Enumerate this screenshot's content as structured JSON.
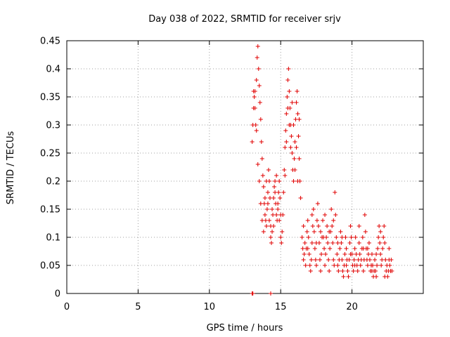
{
  "chart_data": {
    "type": "scatter",
    "title": "Day 038 of 2022, SRMTID for receiver srjv",
    "xlabel": "GPS time / hours",
    "ylabel": "SRMTID / TECUs",
    "xlim": [
      0,
      25
    ],
    "ylim": [
      0,
      0.45
    ],
    "x_ticks": [
      0,
      5,
      10,
      15,
      20
    ],
    "y_ticks": [
      0,
      0.05,
      0.1,
      0.15,
      0.2,
      0.25,
      0.3,
      0.35,
      0.4,
      0.45
    ],
    "x_tick_labels": [
      "0",
      "5",
      "10",
      "15",
      "20"
    ],
    "y_tick_labels": [
      "0",
      "0.05",
      "0.1",
      "0.15",
      "0.2",
      "0.25",
      "0.3",
      "0.35",
      "0.4",
      "0.45"
    ],
    "grid": true,
    "marker": "plus",
    "color": "#e00000",
    "series": [
      {
        "values": [
          [
            13.0,
            0.0
          ],
          [
            13.05,
            0.0
          ],
          [
            14.3,
            0.0
          ],
          [
            13.1,
            0.36
          ],
          [
            13.15,
            0.35
          ],
          [
            13.2,
            0.33
          ],
          [
            13.25,
            0.3
          ],
          [
            13.3,
            0.38
          ],
          [
            13.35,
            0.42
          ],
          [
            13.4,
            0.44
          ],
          [
            13.45,
            0.4
          ],
          [
            13.5,
            0.37
          ],
          [
            13.55,
            0.34
          ],
          [
            13.6,
            0.31
          ],
          [
            13.65,
            0.27
          ],
          [
            13.7,
            0.24
          ],
          [
            13.75,
            0.21
          ],
          [
            13.8,
            0.19
          ],
          [
            13.85,
            0.16
          ],
          [
            13.9,
            0.14
          ],
          [
            13.95,
            0.13
          ],
          [
            14.0,
            0.12
          ],
          [
            14.05,
            0.15
          ],
          [
            14.1,
            0.18
          ],
          [
            14.15,
            0.22
          ],
          [
            14.2,
            0.2
          ],
          [
            14.25,
            0.17
          ],
          [
            14.3,
            0.12
          ],
          [
            14.35,
            0.09
          ],
          [
            14.4,
            0.11
          ],
          [
            14.45,
            0.14
          ],
          [
            14.5,
            0.17
          ],
          [
            14.55,
            0.19
          ],
          [
            14.6,
            0.2
          ],
          [
            14.65,
            0.16
          ],
          [
            14.7,
            0.14
          ],
          [
            14.75,
            0.13
          ],
          [
            14.8,
            0.15
          ],
          [
            14.85,
            0.18
          ],
          [
            14.9,
            0.2
          ],
          [
            14.95,
            0.17
          ],
          [
            15.0,
            0.1
          ],
          [
            15.05,
            0.09
          ],
          [
            15.1,
            0.11
          ],
          [
            15.15,
            0.14
          ],
          [
            15.2,
            0.18
          ],
          [
            15.25,
            0.22
          ],
          [
            15.3,
            0.26
          ],
          [
            13.0,
            0.27
          ],
          [
            13.05,
            0.3
          ],
          [
            13.1,
            0.33
          ],
          [
            13.2,
            0.36
          ],
          [
            13.3,
            0.29
          ],
          [
            13.4,
            0.23
          ],
          [
            13.5,
            0.2
          ],
          [
            13.6,
            0.16
          ],
          [
            13.7,
            0.13
          ],
          [
            13.8,
            0.11
          ],
          [
            13.9,
            0.17
          ],
          [
            14.0,
            0.2
          ],
          [
            14.1,
            0.16
          ],
          [
            14.2,
            0.13
          ],
          [
            14.3,
            0.1
          ],
          [
            14.4,
            0.15
          ],
          [
            14.5,
            0.12
          ],
          [
            14.6,
            0.18
          ],
          [
            14.7,
            0.21
          ],
          [
            14.8,
            0.16
          ],
          [
            14.9,
            0.13
          ],
          [
            15.0,
            0.14
          ],
          [
            15.35,
            0.29
          ],
          [
            15.4,
            0.32
          ],
          [
            15.45,
            0.35
          ],
          [
            15.5,
            0.38
          ],
          [
            15.55,
            0.4
          ],
          [
            15.6,
            0.36
          ],
          [
            15.65,
            0.33
          ],
          [
            15.7,
            0.3
          ],
          [
            15.75,
            0.28
          ],
          [
            15.8,
            0.25
          ],
          [
            15.85,
            0.22
          ],
          [
            15.9,
            0.2
          ],
          [
            15.95,
            0.24
          ],
          [
            16.0,
            0.27
          ],
          [
            16.05,
            0.31
          ],
          [
            16.1,
            0.34
          ],
          [
            16.15,
            0.36
          ],
          [
            16.2,
            0.32
          ],
          [
            16.25,
            0.28
          ],
          [
            16.3,
            0.24
          ],
          [
            16.35,
            0.2
          ],
          [
            16.4,
            0.17
          ],
          [
            15.3,
            0.21
          ],
          [
            15.4,
            0.27
          ],
          [
            15.5,
            0.33
          ],
          [
            15.6,
            0.3
          ],
          [
            15.7,
            0.26
          ],
          [
            15.8,
            0.34
          ],
          [
            15.9,
            0.3
          ],
          [
            16.0,
            0.22
          ],
          [
            16.1,
            0.26
          ],
          [
            16.2,
            0.2
          ],
          [
            16.3,
            0.31
          ],
          [
            16.5,
            0.1
          ],
          [
            16.55,
            0.08
          ],
          [
            16.6,
            0.06
          ],
          [
            16.65,
            0.07
          ],
          [
            16.7,
            0.09
          ],
          [
            16.75,
            0.05
          ],
          [
            16.8,
            0.08
          ],
          [
            16.85,
            0.11
          ],
          [
            16.9,
            0.13
          ],
          [
            16.95,
            0.1
          ],
          [
            17.0,
            0.07
          ],
          [
            17.05,
            0.05
          ],
          [
            17.1,
            0.04
          ],
          [
            17.15,
            0.06
          ],
          [
            17.2,
            0.09
          ],
          [
            17.25,
            0.12
          ],
          [
            17.3,
            0.15
          ],
          [
            17.35,
            0.11
          ],
          [
            17.4,
            0.08
          ],
          [
            17.45,
            0.06
          ],
          [
            17.5,
            0.09
          ],
          [
            17.55,
            0.13
          ],
          [
            17.6,
            0.16
          ],
          [
            17.65,
            0.12
          ],
          [
            17.7,
            0.09
          ],
          [
            17.75,
            0.06
          ],
          [
            17.8,
            0.04
          ],
          [
            17.85,
            0.07
          ],
          [
            17.9,
            0.1
          ],
          [
            17.95,
            0.13
          ],
          [
            18.0,
            0.1
          ],
          [
            18.05,
            0.08
          ],
          [
            18.1,
            0.05
          ],
          [
            18.15,
            0.07
          ],
          [
            18.2,
            0.1
          ],
          [
            18.25,
            0.12
          ],
          [
            18.3,
            0.09
          ],
          [
            18.35,
            0.06
          ],
          [
            18.4,
            0.04
          ],
          [
            18.45,
            0.08
          ],
          [
            18.5,
            0.11
          ],
          [
            18.55,
            0.15
          ],
          [
            18.6,
            0.12
          ],
          [
            18.65,
            0.09
          ],
          [
            18.7,
            0.06
          ],
          [
            18.75,
            0.05
          ],
          [
            18.8,
            0.18
          ],
          [
            18.85,
            0.14
          ],
          [
            18.9,
            0.1
          ],
          [
            18.95,
            0.07
          ],
          [
            19.0,
            0.05
          ],
          [
            19.05,
            0.04
          ],
          [
            19.1,
            0.06
          ],
          [
            19.15,
            0.08
          ],
          [
            19.2,
            0.11
          ],
          [
            19.25,
            0.09
          ],
          [
            19.3,
            0.06
          ],
          [
            19.35,
            0.04
          ],
          [
            19.4,
            0.03
          ],
          [
            19.45,
            0.05
          ],
          [
            19.5,
            0.07
          ],
          [
            19.55,
            0.1
          ],
          [
            19.6,
            0.08
          ],
          [
            19.65,
            0.06
          ],
          [
            19.7,
            0.04
          ],
          [
            19.75,
            0.03
          ],
          [
            19.8,
            0.06
          ],
          [
            19.85,
            0.09
          ],
          [
            19.9,
            0.12
          ],
          [
            19.95,
            0.1
          ],
          [
            20.0,
            0.07
          ],
          [
            20.05,
            0.05
          ],
          [
            20.1,
            0.04
          ],
          [
            20.15,
            0.06
          ],
          [
            20.2,
            0.08
          ],
          [
            20.25,
            0.1
          ],
          [
            20.3,
            0.07
          ],
          [
            20.35,
            0.05
          ],
          [
            20.4,
            0.04
          ],
          [
            20.45,
            0.06
          ],
          [
            20.5,
            0.09
          ],
          [
            20.55,
            0.07
          ],
          [
            20.6,
            0.05
          ],
          [
            20.65,
            0.06
          ],
          [
            20.7,
            0.08
          ],
          [
            20.75,
            0.1
          ],
          [
            20.8,
            0.08
          ],
          [
            20.85,
            0.06
          ],
          [
            20.9,
            0.14
          ],
          [
            20.95,
            0.11
          ],
          [
            21.0,
            0.08
          ],
          [
            21.05,
            0.06
          ],
          [
            21.1,
            0.05
          ],
          [
            21.15,
            0.07
          ],
          [
            21.2,
            0.09
          ],
          [
            21.25,
            0.06
          ],
          [
            21.3,
            0.04
          ],
          [
            21.35,
            0.05
          ],
          [
            21.4,
            0.07
          ],
          [
            21.45,
            0.05
          ],
          [
            21.5,
            0.03
          ],
          [
            21.55,
            0.04
          ],
          [
            21.6,
            0.06
          ],
          [
            21.65,
            0.04
          ],
          [
            21.7,
            0.03
          ],
          [
            21.75,
            0.05
          ],
          [
            21.8,
            0.08
          ],
          [
            21.85,
            0.1
          ],
          [
            21.9,
            0.12
          ],
          [
            21.95,
            0.09
          ],
          [
            22.0,
            0.07
          ],
          [
            22.05,
            0.05
          ],
          [
            22.1,
            0.06
          ],
          [
            22.15,
            0.08
          ],
          [
            22.2,
            0.1
          ],
          [
            22.25,
            0.12
          ],
          [
            22.3,
            0.09
          ],
          [
            22.35,
            0.06
          ],
          [
            22.4,
            0.04
          ],
          [
            22.45,
            0.05
          ],
          [
            22.5,
            0.03
          ],
          [
            22.55,
            0.04
          ],
          [
            22.6,
            0.06
          ],
          [
            22.65,
            0.05
          ],
          [
            22.7,
            0.04
          ],
          [
            22.75,
            0.06
          ],
          [
            22.8,
            0.04
          ],
          [
            16.6,
            0.12
          ],
          [
            16.9,
            0.08
          ],
          [
            17.2,
            0.14
          ],
          [
            17.5,
            0.05
          ],
          [
            17.8,
            0.11
          ],
          [
            18.1,
            0.14
          ],
          [
            18.4,
            0.11
          ],
          [
            18.7,
            0.13
          ],
          [
            19.0,
            0.09
          ],
          [
            19.3,
            0.1
          ],
          [
            19.6,
            0.05
          ],
          [
            19.9,
            0.07
          ],
          [
            20.2,
            0.05
          ],
          [
            20.5,
            0.12
          ],
          [
            20.8,
            0.04
          ],
          [
            21.1,
            0.08
          ],
          [
            21.4,
            0.04
          ],
          [
            21.7,
            0.07
          ],
          [
            22.0,
            0.11
          ],
          [
            22.3,
            0.03
          ],
          [
            22.6,
            0.08
          ]
        ]
      }
    ]
  }
}
